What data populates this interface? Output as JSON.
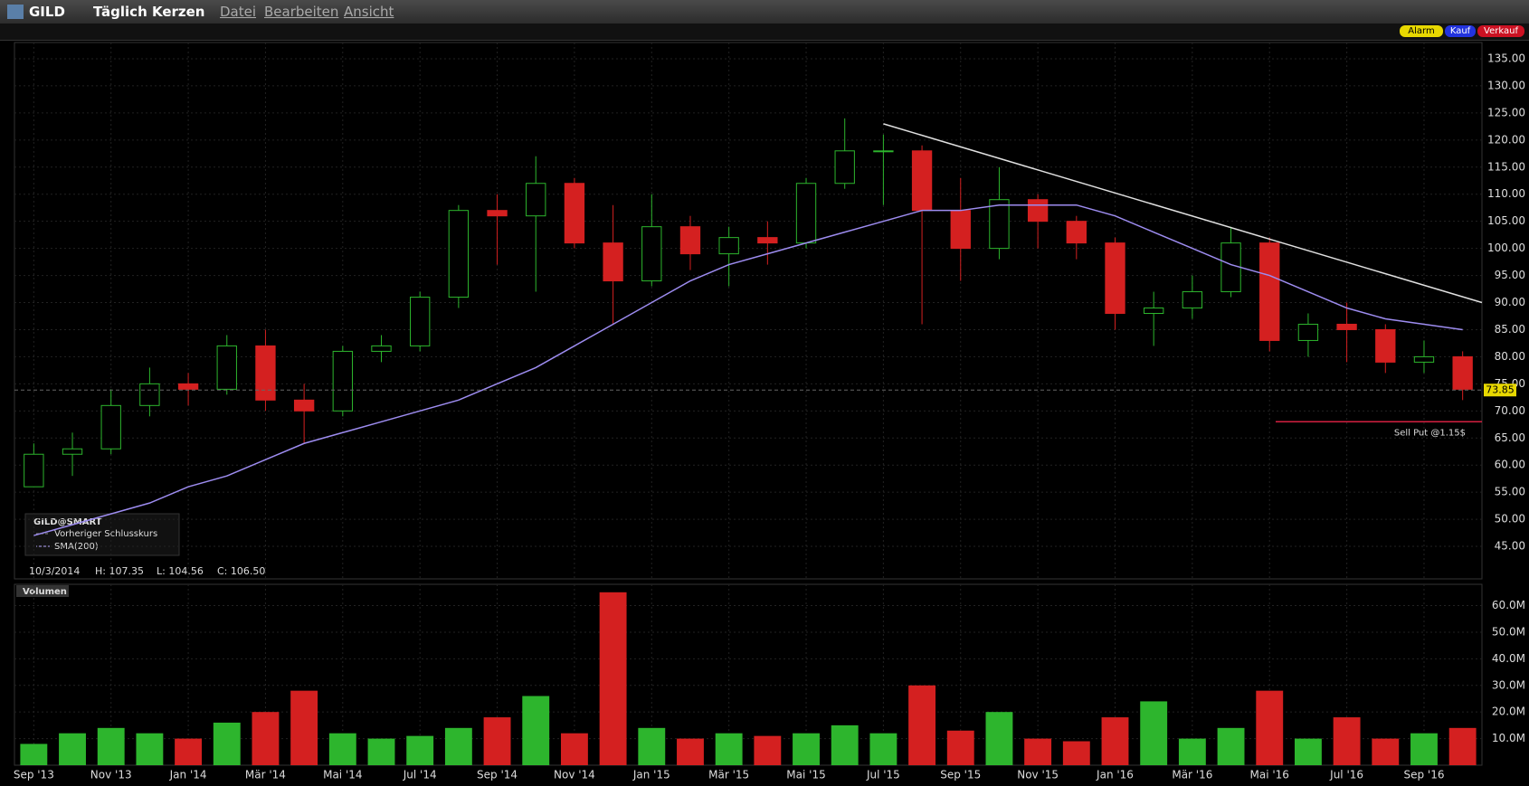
{
  "header": {
    "symbol": "GILD",
    "mode": "Täglich Kerzen",
    "menu": [
      "Datei",
      "Bearbeiten",
      "Ansicht"
    ],
    "buttons": [
      "Alarm",
      "Kauf",
      "Verkauf"
    ]
  },
  "legend": {
    "title": "GILD@SMART",
    "items": [
      "Vorheriger Schlusskurs",
      "SMA(200)"
    ]
  },
  "info": {
    "date": "10/3/2014",
    "high": "H: 107.35",
    "low": "L: 104.56",
    "close": "C: 106.50"
  },
  "volume_panel": {
    "title": "Volumen"
  },
  "chart_data": {
    "type": "candlestick",
    "categories": [
      "Sep '13",
      null,
      "Nov '13",
      null,
      "Jan '14",
      null,
      "Mär '14",
      null,
      "Mai '14",
      null,
      "Jul '14",
      null,
      "Sep '14",
      null,
      "Nov '14",
      null,
      "Jan '15",
      null,
      "Mär '15",
      null,
      "Mai '15",
      null,
      "Jul '15",
      null,
      "Sep '15",
      null,
      "Nov '15",
      null,
      "Jan '16",
      null,
      "Mär '16",
      null,
      "Mai '16",
      null,
      "Jul '16",
      null,
      "Sep '16",
      null
    ],
    "open": [
      56,
      62,
      63,
      71,
      75,
      74,
      82,
      72,
      70,
      81,
      82,
      91,
      107,
      106,
      112,
      101,
      94,
      104,
      99,
      102,
      101,
      112,
      118,
      118,
      107,
      100,
      109,
      105,
      101,
      88,
      89,
      92,
      101,
      83,
      86,
      85,
      79,
      80
    ],
    "high": [
      64,
      66,
      74,
      78,
      77,
      84,
      85,
      75,
      82,
      84,
      92,
      108,
      110,
      117,
      113,
      108,
      110,
      106,
      104,
      105,
      113,
      124,
      121,
      119,
      113,
      115,
      110,
      106,
      102,
      92,
      95,
      104,
      102,
      88,
      90,
      86,
      83,
      81
    ],
    "low": [
      56,
      58,
      62,
      69,
      71,
      73,
      70,
      64,
      69,
      79,
      81,
      89,
      97,
      92,
      100,
      86,
      93,
      96,
      93,
      97,
      100,
      111,
      108,
      86,
      94,
      98,
      100,
      98,
      85,
      82,
      87,
      91,
      81,
      80,
      79,
      77,
      77,
      72
    ],
    "close": [
      62,
      63,
      71,
      75,
      74,
      82,
      72,
      70,
      81,
      82,
      91,
      107,
      106,
      112,
      101,
      94,
      104,
      99,
      102,
      101,
      112,
      118,
      118,
      107,
      100,
      109,
      105,
      101,
      88,
      89,
      92,
      101,
      83,
      86,
      85,
      79,
      80,
      74
    ],
    "up_color": "#2db52d",
    "down_color": "#d42020",
    "sma": {
      "color": "#9d8cf0",
      "values": [
        47,
        49,
        51,
        53,
        56,
        58,
        61,
        64,
        66,
        68,
        70,
        72,
        75,
        78,
        82,
        86,
        90,
        94,
        97,
        99,
        101,
        103,
        105,
        107,
        107,
        108,
        108,
        108,
        106,
        103,
        100,
        97,
        95,
        92,
        89,
        87,
        86,
        85
      ]
    },
    "trendline": {
      "start": "Jul '15",
      "values": [
        123,
        90
      ],
      "color": "#e0e0e0"
    },
    "last_price": {
      "value": 73.85,
      "label": "73.85",
      "color": "#e8d800"
    },
    "annotation": {
      "text": "Sell Put @1.15$",
      "value": 68,
      "color": "#d42040"
    },
    "ylim": [
      39,
      138
    ],
    "yticks": [
      {
        "value": 45,
        "label": "45.00"
      },
      {
        "value": 50,
        "label": "50.00"
      },
      {
        "value": 55,
        "label": "55.00"
      },
      {
        "value": 60,
        "label": "60.00"
      },
      {
        "value": 65,
        "label": "65.00"
      },
      {
        "value": 70,
        "label": "70.00"
      },
      {
        "value": 75,
        "label": "75.00"
      },
      {
        "value": 80,
        "label": "80.00"
      },
      {
        "value": 85,
        "label": "85.00"
      },
      {
        "value": 90,
        "label": "90.00"
      },
      {
        "value": 95,
        "label": "95.00"
      },
      {
        "value": 100,
        "label": "100.00"
      },
      {
        "value": 105,
        "label": "105.00"
      },
      {
        "value": 110,
        "label": "110.00"
      },
      {
        "value": 115,
        "label": "115.00"
      },
      {
        "value": 120,
        "label": "120.00"
      },
      {
        "value": 125,
        "label": "125.00"
      },
      {
        "value": 130,
        "label": "130.00"
      },
      {
        "value": 135,
        "label": "135.00"
      }
    ],
    "grid": true,
    "volume": [
      8000000,
      12000000,
      14000000,
      12000000,
      10000000,
      16000000,
      20000000,
      28000000,
      12000000,
      10000000,
      11000000,
      14000000,
      18000000,
      26000000,
      12000000,
      65000000,
      14000000,
      10000000,
      12000000,
      11000000,
      12000000,
      15000000,
      12000000,
      30000000,
      13000000,
      20000000,
      10000000,
      9000000,
      18000000,
      24000000,
      10000000,
      14000000,
      28000000,
      10000000,
      18000000,
      10000000,
      12000000,
      14000000
    ],
    "volume_ylim": [
      0,
      68000000
    ],
    "volume_yticks": [
      {
        "value": 10000000,
        "label": "10.0M"
      },
      {
        "value": 20000000,
        "label": "20.0M"
      },
      {
        "value": 30000000,
        "label": "30.0M"
      },
      {
        "value": 40000000,
        "label": "40.0M"
      },
      {
        "value": 50000000,
        "label": "50.0M"
      },
      {
        "value": 60000000,
        "label": "60.0M"
      }
    ]
  }
}
